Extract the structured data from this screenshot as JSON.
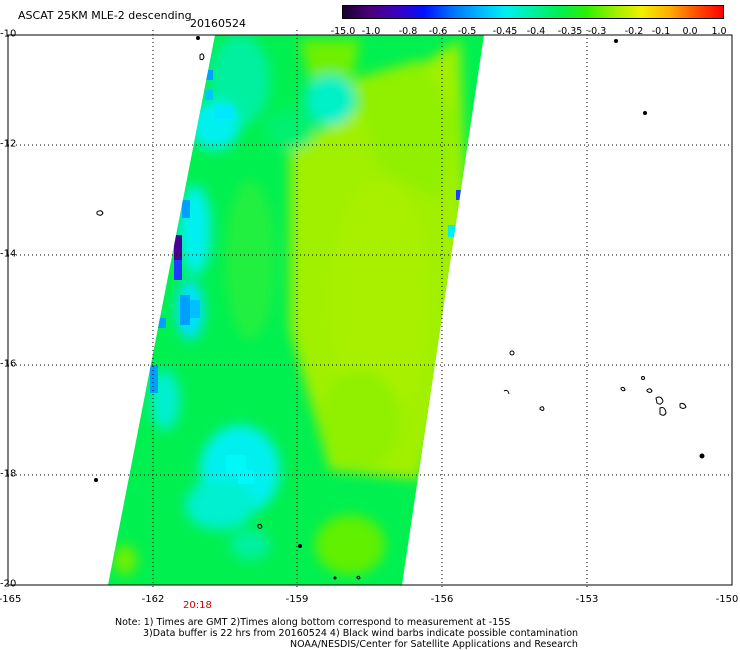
{
  "header": {
    "title": "ASCAT 25KM MLE-2 descending",
    "date": "20160524"
  },
  "colorbar": {
    "labels": [
      "-15.0",
      "-1.0",
      "-0.8",
      "-0.6",
      "-0.5",
      "-0.45",
      "-0.4",
      "-0.35",
      "-0.3",
      "-0.2",
      "-0.1",
      "0.0",
      "1.0"
    ],
    "colors": [
      "#1a0030",
      "#4b007a",
      "#3a00c0",
      "#0010ff",
      "#0070ff",
      "#00b4ff",
      "#00f0f0",
      "#00f0a0",
      "#00f050",
      "#30f000",
      "#9cf000",
      "#f0f000",
      "#ffb000",
      "#ff5000",
      "#ff0000"
    ]
  },
  "axes": {
    "x_ticks": [
      "-165",
      "-162",
      "-159",
      "-156",
      "-153",
      "-150"
    ],
    "y_ticks": [
      "-10",
      "-12",
      "-14",
      "-16",
      "-18",
      "-20"
    ]
  },
  "time_label": "20:18",
  "notes": {
    "line1": "Note: 1) Times are GMT 2)Times along bottom correspond to measurement at -15S",
    "line2": "3)Data buffer is 22 hrs from 20160524 4) Black wind barbs indicate possible contamination",
    "line3": "NOAA/NESDIS/Center for Satellite Applications and Research"
  },
  "swath_colors": {
    "deep_blue": "#4b0096",
    "blue": "#1e3cff",
    "cyan_blue": "#00a0ff",
    "cyan": "#00f0f0",
    "aqua": "#00f0a0",
    "green": "#00f050",
    "lime": "#70f000",
    "yellowgreen": "#a0f000"
  }
}
